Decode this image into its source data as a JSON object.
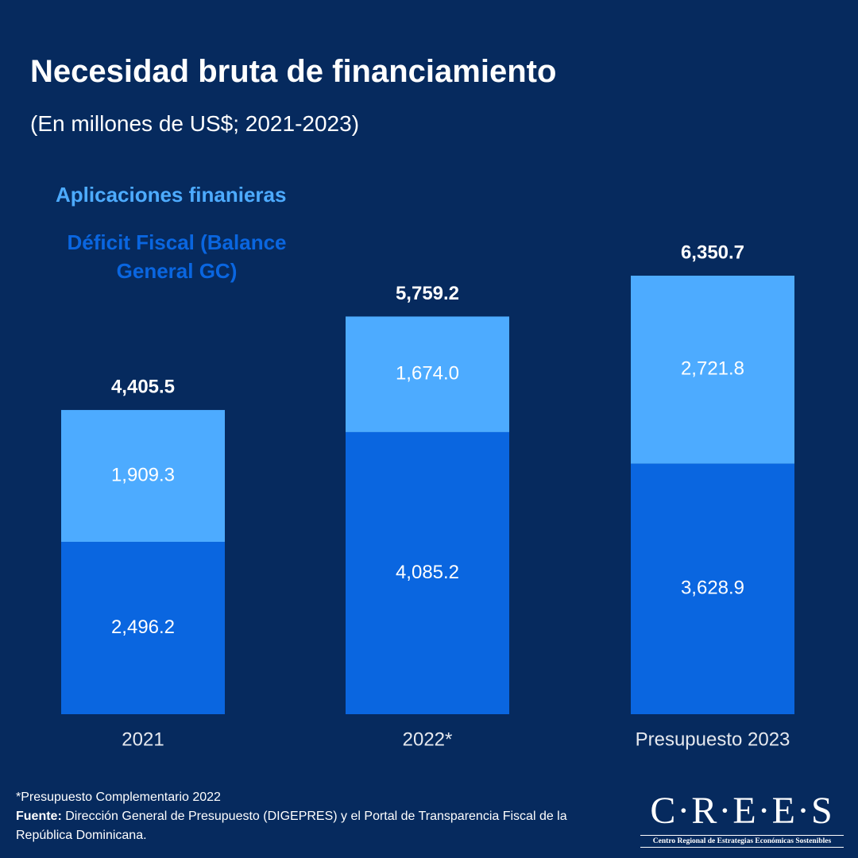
{
  "chart_data": {
    "type": "stacked_bar",
    "title": "Necesidad bruta de financiamiento",
    "subtitle": "(En millones de US$; 2021-2023)",
    "categories": [
      "2021",
      "2022*",
      "Presupuesto 2023"
    ],
    "series": [
      {
        "name": "Déficit Fiscal (Balance General GC)",
        "color": "#0a66e0",
        "values": [
          2496.2,
          4085.2,
          3628.9
        ],
        "value_labels": [
          "2,496.2",
          "4,085.2",
          "3,628.9"
        ]
      },
      {
        "name": "Aplicaciones finanieras",
        "color": "#4dabff",
        "values": [
          1909.3,
          1674.0,
          2721.8
        ],
        "value_labels": [
          "1,909.3",
          "1,674.0",
          "2,721.8"
        ]
      }
    ],
    "totals": [
      4405.5,
      5759.2,
      6350.7
    ],
    "total_labels": [
      "4,405.5",
      "5,759.2",
      "6,350.7"
    ],
    "grid": false
  },
  "footer": {
    "note": "*Presupuesto Complementario 2022",
    "source_label": "Fuente:",
    "source_text": "Dirección General de Presupuesto (DIGEPRES) y el Portal de Transparencia Fiscal de la República Dominicana."
  },
  "logo": {
    "name": "C·R·E·E·S",
    "subtitle": "Centro Regional de Estrategias Económicas Sostenibles"
  }
}
